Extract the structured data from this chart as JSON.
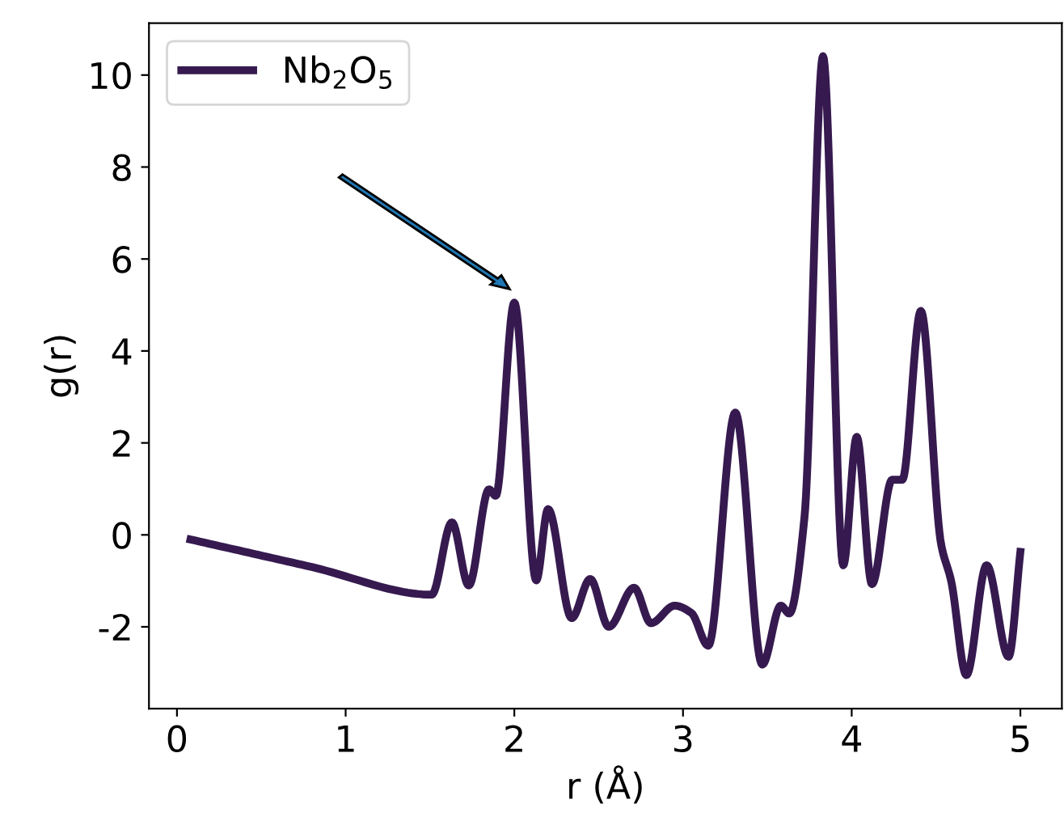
{
  "chart_data": {
    "type": "line",
    "xlabel": "r (Å)",
    "ylabel": "g(r)",
    "xlim": [
      -0.166,
      5.246
    ],
    "ylim": [
      -3.78,
      11.13
    ],
    "xticks": [
      0,
      1,
      2,
      3,
      4,
      5
    ],
    "yticks": [
      -2,
      0,
      2,
      4,
      6,
      8,
      10
    ],
    "grid": false,
    "legend": "top left",
    "line_style": "solid",
    "marker": "none",
    "series": [
      {
        "name": "Nb$_{2}$O$_{5}$",
        "color": "#361a4f",
        "x": [
          0.08,
          0.8,
          1.51,
          1.63,
          1.73,
          1.85,
          1.89,
          2.0,
          2.13,
          2.2,
          2.34,
          2.45,
          2.56,
          2.71,
          2.81,
          2.95,
          3.05,
          3.15,
          3.31,
          3.47,
          3.58,
          3.63,
          3.72,
          3.83,
          3.95,
          4.03,
          4.12,
          4.24,
          4.3,
          4.41,
          4.53,
          4.59,
          4.68,
          4.8,
          4.93,
          5.0
        ],
        "values": [
          -0.1,
          -0.7,
          -1.3,
          0.27,
          -1.1,
          0.99,
          0.85,
          5.05,
          -0.99,
          0.56,
          -1.81,
          -0.96,
          -2.0,
          -1.15,
          -1.92,
          -1.54,
          -1.7,
          -2.41,
          2.66,
          -2.82,
          -1.54,
          -1.71,
          0.38,
          10.41,
          -0.66,
          2.13,
          -1.07,
          1.2,
          1.2,
          4.87,
          -0.2,
          -1.01,
          -3.05,
          -0.66,
          -2.65,
          -0.37
        ]
      }
    ]
  }
}
